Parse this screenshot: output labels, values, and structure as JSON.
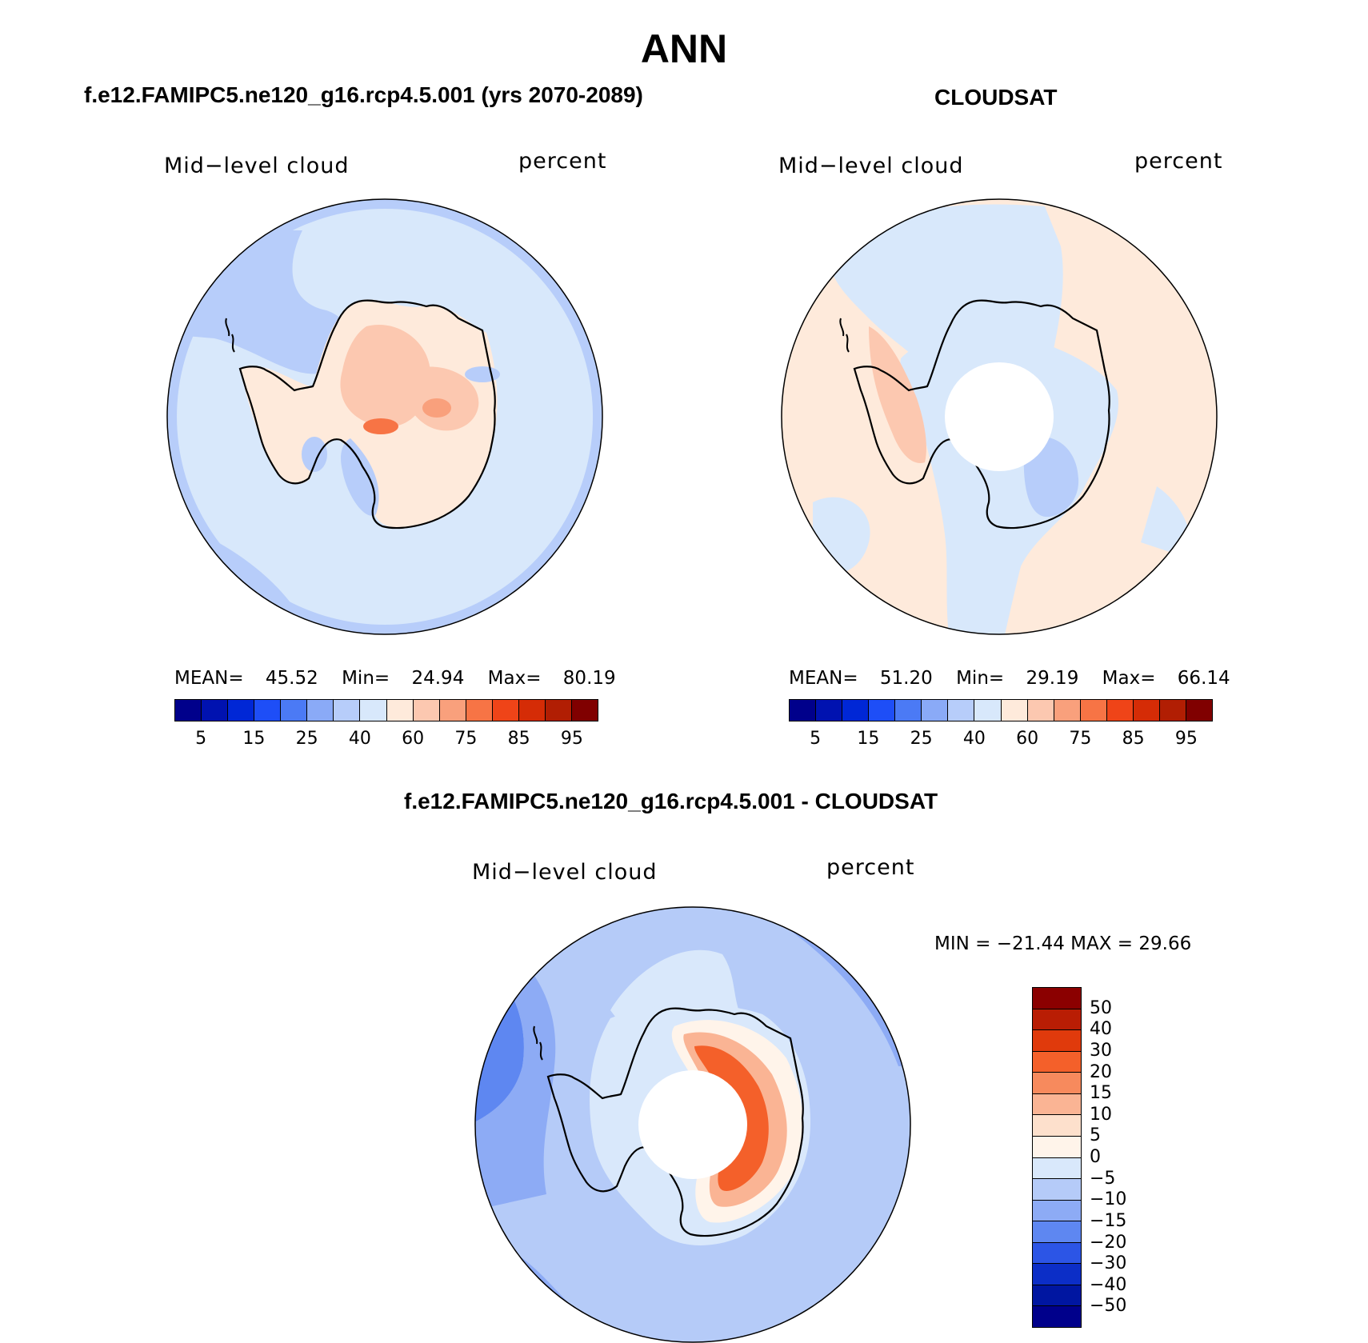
{
  "title": "ANN",
  "panels": [
    {
      "title": "f.e12.FAMIPC5.ne120_g16.rcp4.5.001 (yrs 2070-2089)",
      "variable": "Mid−level cloud",
      "units": "percent",
      "stats": {
        "mean_label": "MEAN=",
        "mean": "45.52",
        "min_label": "Min=",
        "min": "24.94",
        "max_label": "Max=",
        "max": "80.19"
      },
      "ticks": [
        "5",
        "15",
        "25",
        "40",
        "60",
        "75",
        "85",
        "95"
      ]
    },
    {
      "title": "CLOUDSAT",
      "variable": "Mid−level cloud",
      "units": "percent",
      "stats": {
        "mean_label": "MEAN=",
        "mean": "51.20",
        "min_label": "Min=",
        "min": "29.19",
        "max_label": "Max=",
        "max": "66.14"
      },
      "ticks": [
        "5",
        "15",
        "25",
        "40",
        "60",
        "75",
        "85",
        "95"
      ]
    }
  ],
  "diff": {
    "title": "f.e12.FAMIPC5.ne120_g16.rcp4.5.001 - CLOUDSAT",
    "variable": "Mid−level cloud",
    "units": "percent",
    "minmax": "MIN = −21.44 MAX =   29.66",
    "ticks": [
      "50",
      "40",
      "30",
      "20",
      "15",
      "10",
      "5",
      "0",
      "−5",
      "−10",
      "−15",
      "−20",
      "−30",
      "−40",
      "−50"
    ]
  },
  "colors": {
    "abs_scale": [
      "#00008b",
      "#0012b0",
      "#0027d6",
      "#1e4ef7",
      "#4b7af5",
      "#8aaaf7",
      "#b7cdfa",
      "#d8e8fb",
      "#feeadb",
      "#fcc8b0",
      "#f9a07c",
      "#f77445",
      "#ef4418",
      "#d52c06",
      "#b11e03",
      "#800000"
    ],
    "diff_scale": [
      "#8b0000",
      "#b91d04",
      "#e03a0c",
      "#f4602a",
      "#f78a5d",
      "#fab494",
      "#fde0cc",
      "#fff4ea",
      "#d9e8fb",
      "#b5cbf8",
      "#8dabf5",
      "#5e87f1",
      "#2c55e6",
      "#0c2ec7",
      "#0016a1",
      "#00008b"
    ]
  }
}
